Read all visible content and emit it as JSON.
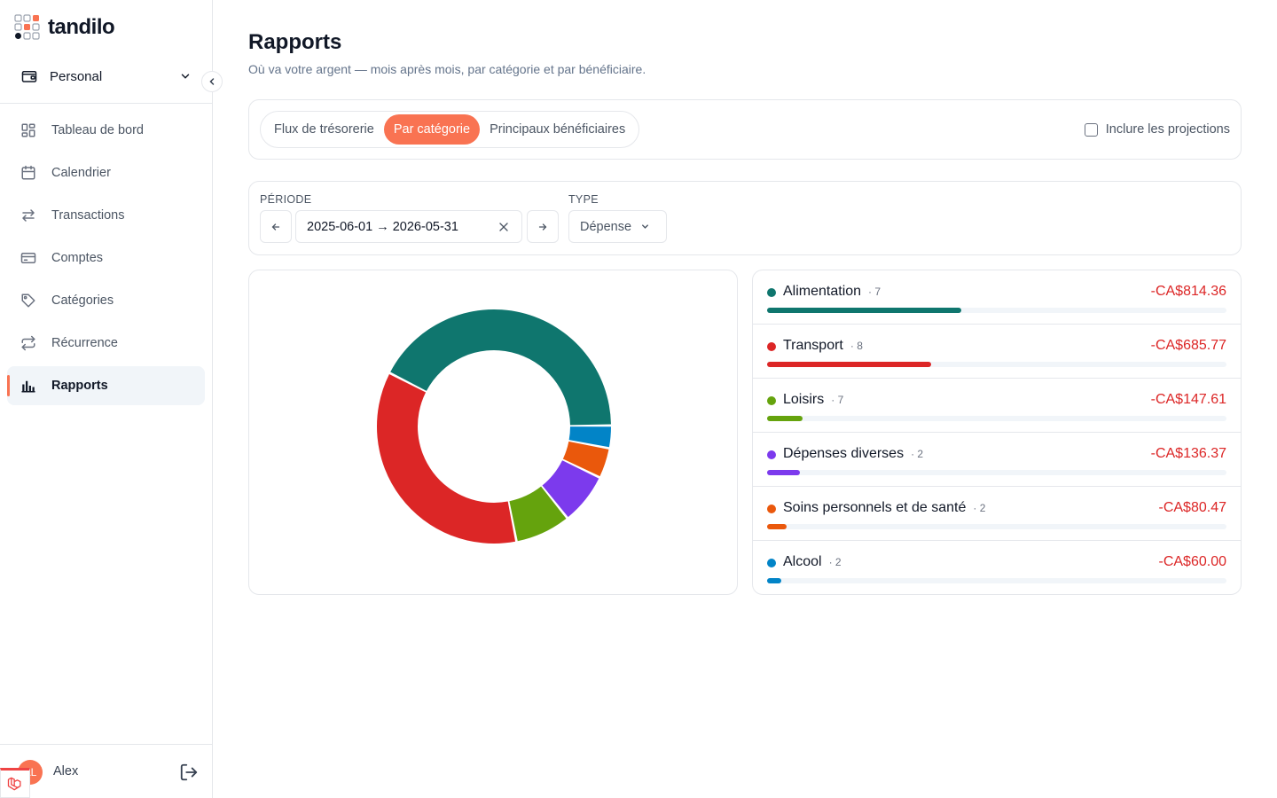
{
  "app": {
    "name": "tandilo",
    "workspace": "Personal",
    "user": {
      "name": "Alex",
      "initials": "AL"
    }
  },
  "sidebar": {
    "items": [
      {
        "label": "Tableau de bord",
        "icon": "dashboard-icon",
        "active": false
      },
      {
        "label": "Calendrier",
        "icon": "calendar-icon",
        "active": false
      },
      {
        "label": "Transactions",
        "icon": "transfer-arrows-icon",
        "active": false
      },
      {
        "label": "Comptes",
        "icon": "credit-card-icon",
        "active": false
      },
      {
        "label": "Catégories",
        "icon": "tag-icon",
        "active": false
      },
      {
        "label": "Récurrence",
        "icon": "repeat-icon",
        "active": false
      },
      {
        "label": "Rapports",
        "icon": "bar-chart-icon",
        "active": true
      }
    ]
  },
  "page": {
    "title": "Rapports",
    "subtitle": "Où va votre argent — mois après mois, par catégorie et par bénéficiaire."
  },
  "tabs": [
    {
      "label": "Flux de trésorerie",
      "active": false
    },
    {
      "label": "Par catégorie",
      "active": true
    },
    {
      "label": "Principaux bénéficiaires",
      "active": false
    }
  ],
  "projections": {
    "label": "Inclure les projections",
    "checked": false
  },
  "filters": {
    "period_label": "PÉRIODE",
    "period_value": "2025-06-01 → 2026-05-31",
    "type_label": "TYPE",
    "type_value": "Dépense"
  },
  "colors": {
    "accent": "#f97352",
    "negative": "#dc2626"
  },
  "chart_data": {
    "type": "pie",
    "variant": "donut",
    "categories": [
      "Alimentation",
      "Transport",
      "Loisirs",
      "Dépenses diverses",
      "Soins personnels et de santé",
      "Alcool"
    ],
    "values": [
      814.36,
      685.77,
      147.61,
      136.37,
      80.47,
      60.0
    ],
    "colors": [
      "#0f766e",
      "#dc2626",
      "#65a30d",
      "#7c3aed",
      "#ea580c",
      "#0284c7"
    ]
  },
  "categories": [
    {
      "name": "Alimentation",
      "count": "· 7",
      "amount": "-CA$814.36",
      "value": 814.36,
      "color": "#0f766e"
    },
    {
      "name": "Transport",
      "count": "· 8",
      "amount": "-CA$685.77",
      "value": 685.77,
      "color": "#dc2626"
    },
    {
      "name": "Loisirs",
      "count": "· 7",
      "amount": "-CA$147.61",
      "value": 147.61,
      "color": "#65a30d"
    },
    {
      "name": "Dépenses diverses",
      "count": "· 2",
      "amount": "-CA$136.37",
      "value": 136.37,
      "color": "#7c3aed"
    },
    {
      "name": "Soins personnels et de santé",
      "count": "· 2",
      "amount": "-CA$80.47",
      "value": 80.47,
      "color": "#ea580c"
    },
    {
      "name": "Alcool",
      "count": "· 2",
      "amount": "-CA$60.00",
      "value": 60.0,
      "color": "#0284c7"
    }
  ]
}
